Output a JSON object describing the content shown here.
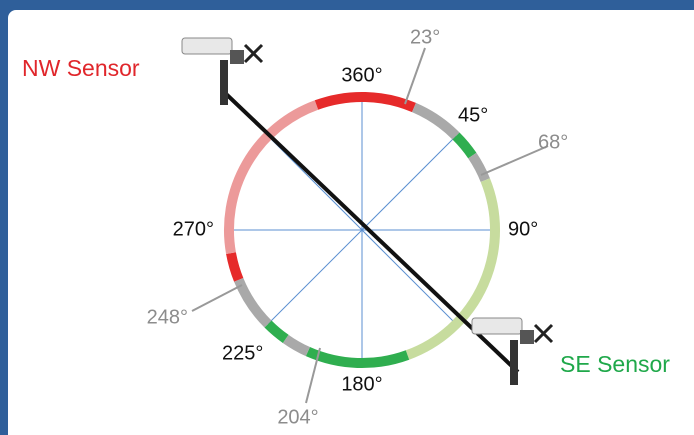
{
  "sensors": {
    "nw": "NW Sensor",
    "se": "SE Sensor"
  },
  "main_angles": [
    "360°",
    "45°",
    "90°",
    "180°",
    "225°",
    "270°"
  ],
  "offset_angles": [
    "23°",
    "68°",
    "248°",
    "204°"
  ]
}
